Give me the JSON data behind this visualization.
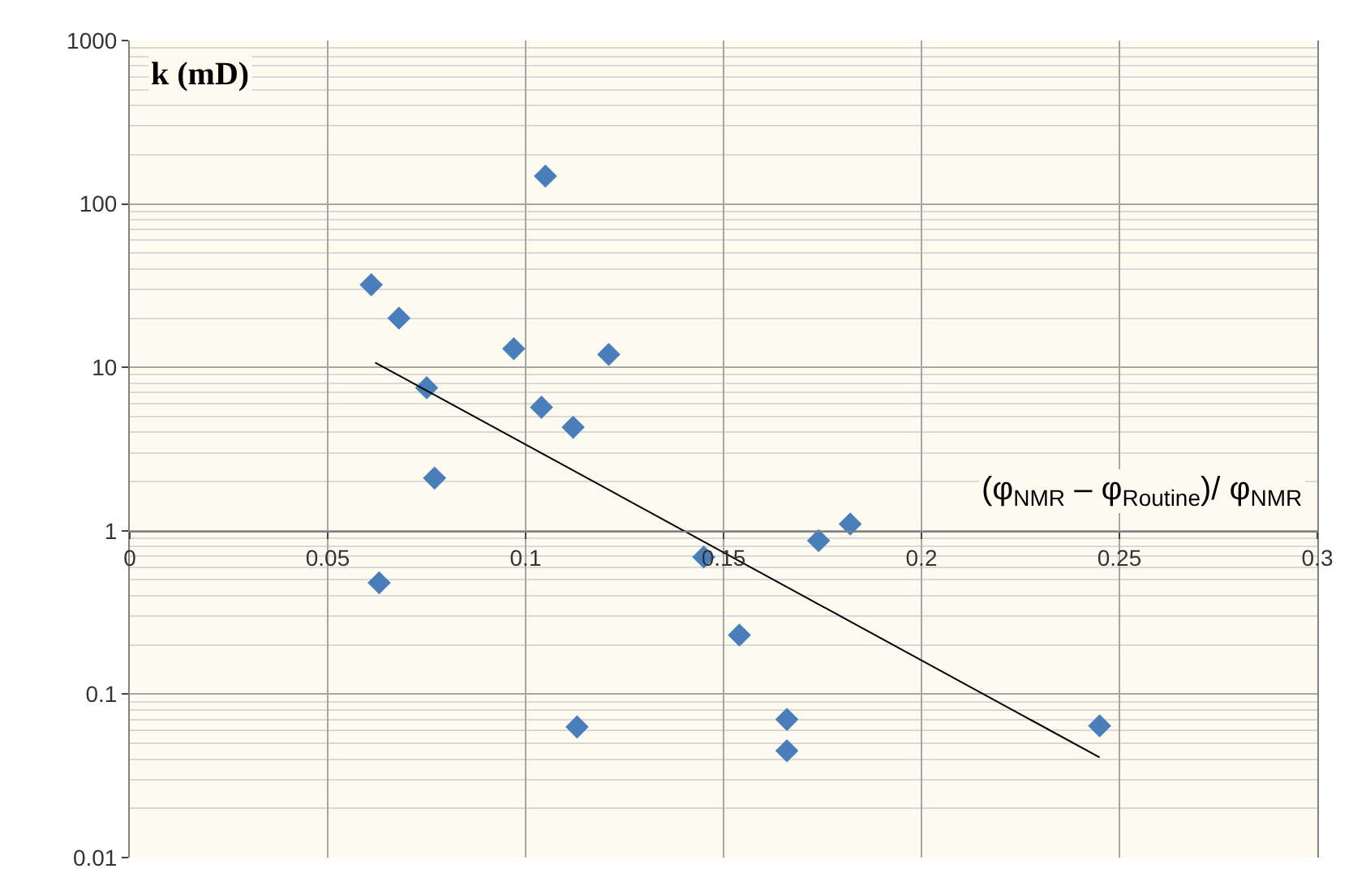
{
  "chart_data": {
    "type": "scatter",
    "xlabel": "(φ$_{NMR}$ – φ$_{Routine}$)/ φ$_{NMR}$",
    "ylabel": "k (mD)",
    "log": "y",
    "grid": true,
    "marker": "diamond",
    "xlim": [
      0,
      0.3
    ],
    "xticks": [
      0,
      0.05,
      0.1,
      0.15,
      0.2,
      0.25,
      0.3
    ],
    "ylim": [
      0.01,
      1000
    ],
    "yticks": [
      0.01,
      0.1,
      1,
      10,
      100,
      1000
    ],
    "series": [
      {
        "color": "#4a7ebb",
        "x": [
          0.061,
          0.068,
          0.075,
          0.077,
          0.063,
          0.097,
          0.105,
          0.104,
          0.112,
          0.121,
          0.113,
          0.145,
          0.154,
          0.166,
          0.166,
          0.174,
          0.182,
          0.245
        ],
        "values": [
          32,
          20,
          7.5,
          2.1,
          0.48,
          13,
          148,
          5.7,
          4.3,
          12,
          0.063,
          0.69,
          0.23,
          0.07,
          0.045,
          0.87,
          1.1,
          0.064
        ]
      },
      {
        "type": "line",
        "color": "#000000",
        "marker": "none",
        "x": [
          0.062,
          0.245
        ],
        "values": [
          10.7,
          0.041
        ]
      }
    ]
  }
}
